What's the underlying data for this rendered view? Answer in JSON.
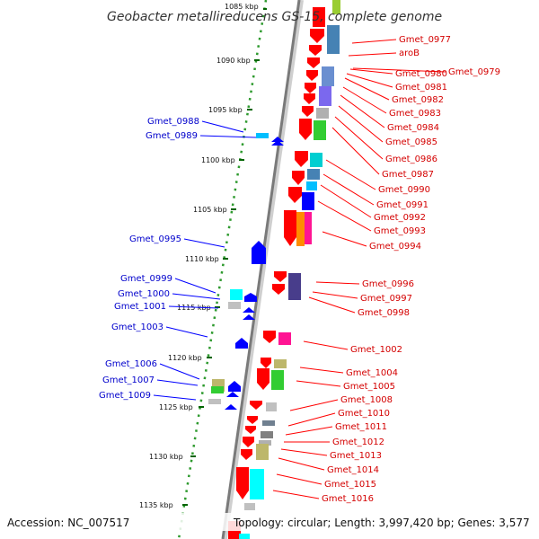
{
  "title": "Geobacter metallireducens GS-15, complete genome",
  "footer": {
    "accession": "Accession: NC_007517",
    "topology": "Topology: circular; Length: 3,997,420 bp; Genes: 3,577"
  },
  "colors": {
    "forward_strand": "#ff0000",
    "reverse_strand": "#0000ff",
    "forward_label": "#d40000",
    "reverse_label": "#0000cc",
    "backbone": "#808080",
    "ruler_dots": "#228b22",
    "ruler_ticks": "#006400"
  },
  "ruler": [
    {
      "kbp": 1085,
      "label": "1085 kbp"
    },
    {
      "kbp": 1090,
      "label": "1090 kbp"
    },
    {
      "kbp": 1095,
      "label": "1095 kbp"
    },
    {
      "kbp": 1100,
      "label": "1100 kbp"
    },
    {
      "kbp": 1105,
      "label": "1105 kbp"
    },
    {
      "kbp": 1110,
      "label": "1110 kbp"
    },
    {
      "kbp": 1115,
      "label": "1115 kbp"
    },
    {
      "kbp": 1120,
      "label": "1120 kbp"
    },
    {
      "kbp": 1125,
      "label": "1125 kbp"
    },
    {
      "kbp": 1130,
      "label": "1130 kbp"
    },
    {
      "kbp": 1135,
      "label": "1135 kbp"
    }
  ],
  "reverse_labels": [
    "Gmet_0988",
    "Gmet_0989",
    "Gmet_0995",
    "Gmet_0999",
    "Gmet_1000",
    "Gmet_1001",
    "Gmet_1003",
    "Gmet_1006",
    "Gmet_1007",
    "Gmet_1009"
  ],
  "forward_labels": [
    "Gmet_0977",
    "aroB",
    "Gmet_0980",
    "Gmet_0979",
    "Gmet_0981",
    "Gmet_0982",
    "Gmet_0983",
    "Gmet_0984",
    "Gmet_0985",
    "Gmet_0986",
    "Gmet_0987",
    "Gmet_0990",
    "Gmet_0991",
    "Gmet_0992",
    "Gmet_0993",
    "Gmet_0994",
    "Gmet_0996",
    "Gmet_0997",
    "Gmet_0998",
    "Gmet_1002",
    "Gmet_1004",
    "Gmet_1005",
    "Gmet_1008",
    "Gmet_1010",
    "Gmet_1011",
    "Gmet_1012",
    "Gmet_1013",
    "Gmet_1014",
    "Gmet_1015",
    "Gmet_1016"
  ]
}
